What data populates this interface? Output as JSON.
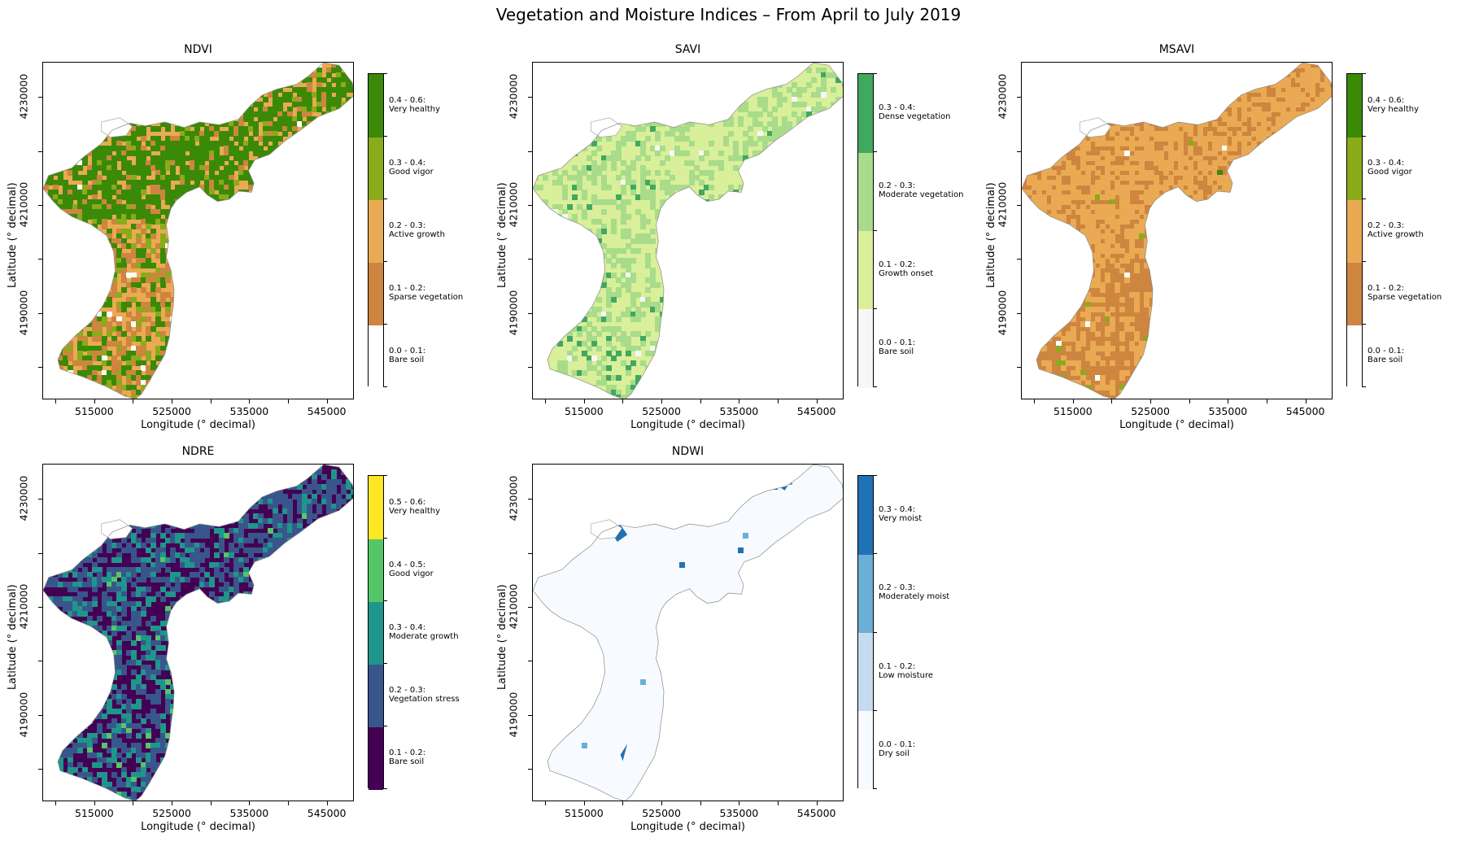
{
  "suptitle": "Vegetation and Moisture Indices – From April to July 2019",
  "chart_data": [
    {
      "type": "heatmap",
      "title": "NDVI",
      "xlabel": "Longitude (° decimal)",
      "ylabel": "Latitude (° decimal)",
      "xticks": [
        "515000",
        "525000",
        "535000",
        "545000"
      ],
      "yticks": [
        "4190000",
        "4210000",
        "4230000"
      ],
      "colorbar": [
        {
          "range": "0.0 - 0.1",
          "label": "Bare soil",
          "color": "#ffffff"
        },
        {
          "range": "0.1 - 0.2",
          "label": "Sparse vegetation",
          "color": "#cd853f"
        },
        {
          "range": "0.2 - 0.3",
          "label": "Active growth",
          "color": "#eaaa53"
        },
        {
          "range": "0.3 - 0.4",
          "label": "Good vigor",
          "color": "#8aab1a"
        },
        {
          "range": "0.4 - 0.6",
          "label": "Very healthy",
          "color": "#3a8a08"
        }
      ]
    },
    {
      "type": "heatmap",
      "title": "SAVI",
      "xlabel": "Longitude (° decimal)",
      "ylabel": "Latitude (° decimal)",
      "xticks": [
        "515000",
        "525000",
        "535000",
        "545000"
      ],
      "yticks": [
        "4190000",
        "4210000",
        "4230000"
      ],
      "colorbar": [
        {
          "range": "0.0 - 0.1",
          "label": "Bare soil",
          "color": "#f7f7f7"
        },
        {
          "range": "0.1 - 0.2",
          "label": "Growth onset",
          "color": "#d9ef9a"
        },
        {
          "range": "0.2 - 0.3",
          "label": "Moderate vegetation",
          "color": "#a8dc8a"
        },
        {
          "range": "0.3 - 0.4",
          "label": "Dense vegetation",
          "color": "#41a85f"
        }
      ]
    },
    {
      "type": "heatmap",
      "title": "MSAVI",
      "xlabel": "Longitude (° decimal)",
      "ylabel": "Latitude (° decimal)",
      "xticks": [
        "515000",
        "525000",
        "535000",
        "545000"
      ],
      "yticks": [
        "4190000",
        "4210000",
        "4230000"
      ],
      "colorbar": [
        {
          "range": "0.0 - 0.1",
          "label": "Bare soil",
          "color": "#ffffff"
        },
        {
          "range": "0.1 - 0.2",
          "label": "Sparse vegetation",
          "color": "#cd853f"
        },
        {
          "range": "0.2 - 0.3",
          "label": "Active growth",
          "color": "#eaaa53"
        },
        {
          "range": "0.3 - 0.4",
          "label": "Good vigor",
          "color": "#8aab1a"
        },
        {
          "range": "0.4 - 0.6",
          "label": "Very healthy",
          "color": "#3a8a08"
        }
      ]
    },
    {
      "type": "heatmap",
      "title": "NDRE",
      "xlabel": "Longitude (° decimal)",
      "ylabel": "Latitude (° decimal)",
      "xticks": [
        "515000",
        "525000",
        "535000",
        "545000"
      ],
      "yticks": [
        "4190000",
        "4210000",
        "4230000"
      ],
      "colorbar": [
        {
          "range": "0.1 - 0.2",
          "label": "Bare soil",
          "color": "#440154"
        },
        {
          "range": "0.2 - 0.3",
          "label": "Vegetation stress",
          "color": "#39568c"
        },
        {
          "range": "0.3 - 0.4",
          "label": "Moderate growth",
          "color": "#1f968b"
        },
        {
          "range": "0.4 - 0.5",
          "label": "Good vigor",
          "color": "#55c667"
        },
        {
          "range": "0.5 - 0.6",
          "label": "Very healthy",
          "color": "#fde725"
        }
      ]
    },
    {
      "type": "heatmap",
      "title": "NDWI",
      "xlabel": "Longitude (° decimal)",
      "ylabel": "Latitude (° decimal)",
      "xticks": [
        "515000",
        "525000",
        "535000",
        "545000"
      ],
      "yticks": [
        "4190000",
        "4210000",
        "4230000"
      ],
      "colorbar": [
        {
          "range": "0.0 - 0.1",
          "label": "Dry soil",
          "color": "#f7fbff"
        },
        {
          "range": "0.1 - 0.2",
          "label": "Low moisture",
          "color": "#c6dbef"
        },
        {
          "range": "0.2 - 0.3",
          "label": "Moderately moist",
          "color": "#6baed6"
        },
        {
          "range": "0.3 - 0.4",
          "label": "Very moist",
          "color": "#2171b5"
        }
      ]
    }
  ]
}
